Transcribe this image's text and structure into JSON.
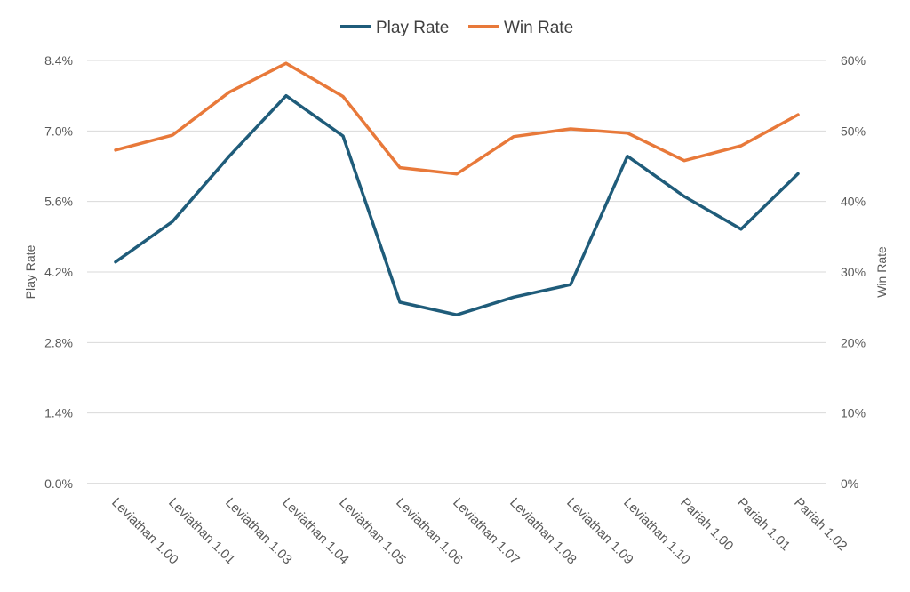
{
  "chart_data": {
    "type": "line",
    "categories": [
      "Leviathan 1.00",
      "Leviathan 1.01",
      "Leviathan 1.03",
      "Leviathan 1.04",
      "Leviathan 1.05",
      "Leviathan 1.06",
      "Leviathan 1.07",
      "Leviathan 1.08",
      "Leviathan 1.09",
      "Leviathan 1.10",
      "Pariah 1.00",
      "Pariah 1.01",
      "Pariah 1.02"
    ],
    "series": [
      {
        "name": "Play Rate",
        "axis": "left",
        "color": "#1f5c7a",
        "values": [
          4.4,
          5.2,
          6.5,
          7.7,
          6.9,
          3.6,
          3.35,
          3.7,
          3.95,
          6.5,
          5.7,
          5.05,
          6.15
        ]
      },
      {
        "name": "Win Rate",
        "axis": "right",
        "color": "#e8793a",
        "values": [
          47.3,
          49.4,
          55.5,
          59.6,
          54.9,
          44.8,
          43.9,
          49.2,
          50.3,
          49.7,
          45.8,
          47.9,
          52.3
        ]
      }
    ],
    "ylabel": "Play Rate",
    "y2label": "Win Rate",
    "ylim": [
      0,
      8.4
    ],
    "y2lim": [
      0,
      60
    ],
    "yticks": [
      "0.0%",
      "1.4%",
      "2.8%",
      "4.2%",
      "5.6%",
      "7.0%",
      "8.4%"
    ],
    "y2ticks": [
      "0%",
      "10%",
      "20%",
      "30%",
      "40%",
      "50%",
      "60%"
    ],
    "legend_position": "top-center",
    "grid": true
  }
}
